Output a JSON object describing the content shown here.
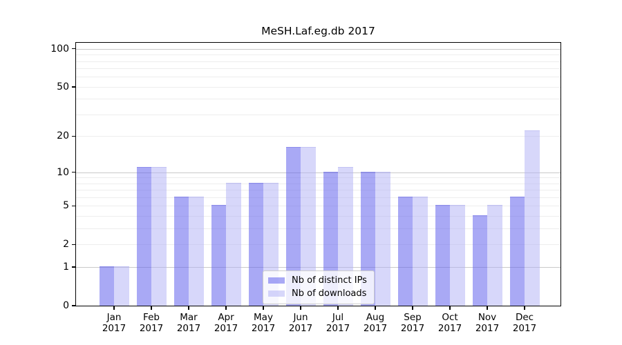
{
  "chart_data": {
    "type": "bar",
    "title": "MeSH.Laf.eg.db 2017",
    "year_label": "2017",
    "categories": [
      "Jan",
      "Feb",
      "Mar",
      "Apr",
      "May",
      "Jun",
      "Jul",
      "Aug",
      "Sep",
      "Oct",
      "Nov",
      "Dec"
    ],
    "series": [
      {
        "name": "Nb of distinct IPs",
        "color": "rgba(99,99,237,0.55)",
        "edge": "rgba(75,75,215,0.30)",
        "values": [
          1,
          11,
          6,
          5,
          8,
          16,
          10,
          10,
          6,
          5,
          4,
          6
        ]
      },
      {
        "name": "Nb of downloads",
        "color": "rgba(176,176,245,0.50)",
        "edge": "rgba(130,130,225,0.25)",
        "values": [
          1,
          11,
          6,
          8,
          8,
          16,
          11,
          10,
          6,
          5,
          5,
          22
        ]
      }
    ],
    "yscale": "log1p",
    "ylim": [
      0,
      111
    ],
    "yticks": [
      0,
      1,
      2,
      5,
      10,
      20,
      50,
      100
    ],
    "grid": {
      "major": [
        1,
        10,
        100
      ],
      "minor": [
        2,
        3,
        4,
        5,
        6,
        7,
        8,
        9,
        20,
        30,
        40,
        50,
        60,
        70,
        80,
        90
      ]
    },
    "legend_position": "lower-center",
    "grouped_by": "month",
    "bars_per_group": 2
  },
  "colors": {
    "grid_major": "#c9c9c9",
    "grid_minor": "#ededed",
    "axis": "#000000",
    "text": "#000000",
    "legend_bg": "rgba(255,255,255,0.8)",
    "legend_border": "#cccccc"
  }
}
